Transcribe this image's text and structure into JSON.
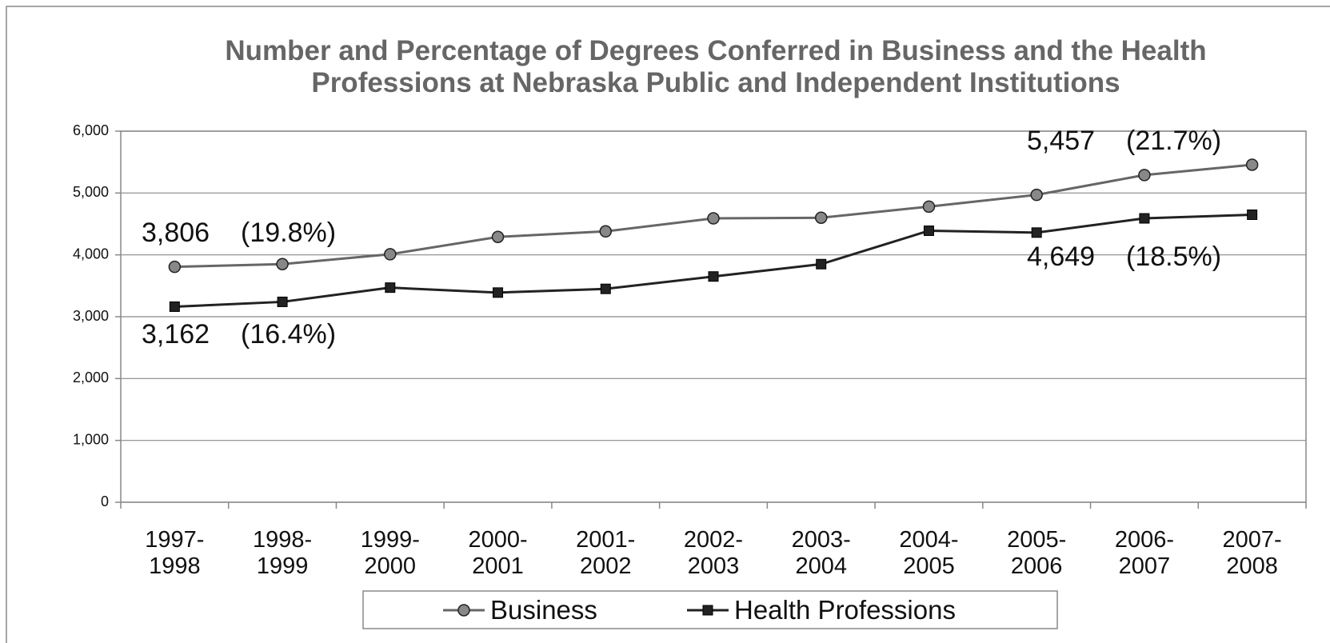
{
  "chart_data": {
    "type": "line",
    "title": "Number and Percentage of Degrees Conferred in Business and the Health Professions at Nebraska Public and Independent Institutions",
    "categories": [
      "1997-1998",
      "1998-1999",
      "1999-2000",
      "2000-2001",
      "2001-2002",
      "2002-2003",
      "2003-2004",
      "2004-2005",
      "2005-2006",
      "2006-2007",
      "2007-2008"
    ],
    "series": [
      {
        "name": "Business",
        "color": "#666666",
        "marker": "circle",
        "values": [
          3806,
          3850,
          4010,
          4290,
          4380,
          4590,
          4600,
          4780,
          4970,
          5290,
          5457
        ],
        "value_labels": [
          "3,806",
          null,
          null,
          null,
          null,
          null,
          null,
          null,
          null,
          null,
          "5,457"
        ],
        "percent_labels": [
          "(19.8%)",
          null,
          null,
          null,
          null,
          null,
          null,
          null,
          null,
          null,
          "(21.7%)"
        ]
      },
      {
        "name": "Health Professions",
        "color": "#222222",
        "marker": "square",
        "values": [
          3162,
          3240,
          3470,
          3390,
          3450,
          3650,
          3850,
          4390,
          4360,
          4590,
          4649
        ],
        "value_labels": [
          "3,162",
          null,
          null,
          null,
          null,
          null,
          null,
          null,
          null,
          null,
          "4,649"
        ],
        "percent_labels": [
          "(16.4%)",
          null,
          null,
          null,
          null,
          null,
          null,
          null,
          null,
          null,
          "(18.5%)"
        ]
      }
    ],
    "ylim": [
      0,
      6000
    ],
    "yticks": [
      0,
      {
        "value": 1000,
        "label": "1,000"
      },
      {
        "value": 2000,
        "label": "2,000"
      },
      {
        "value": 3000,
        "label": "3,000"
      },
      {
        "value": 4000,
        "label": "4,000"
      },
      {
        "value": 5000,
        "label": "5,000"
      },
      {
        "value": 6000,
        "label": "6,000"
      }
    ],
    "grid": true,
    "legend": "bottom"
  }
}
